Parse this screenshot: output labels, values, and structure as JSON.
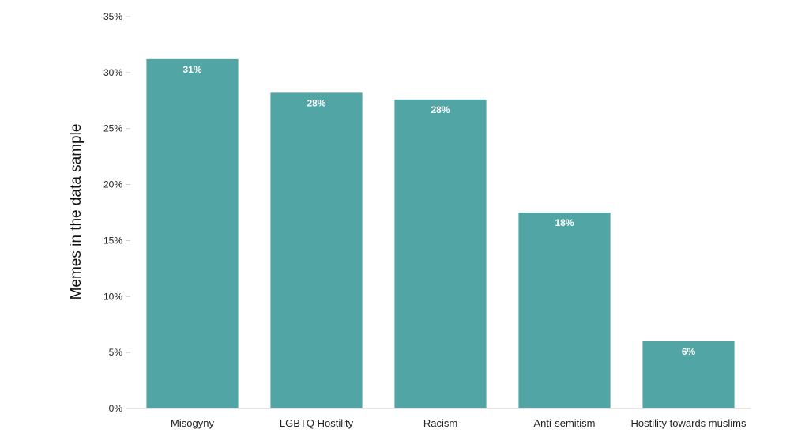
{
  "chart_data": {
    "type": "bar",
    "categories": [
      "Misogyny",
      "LGBTQ Hostility",
      "Racism",
      "Anti-semitism",
      "Hostility towards muslims"
    ],
    "values": [
      31.2,
      28.2,
      27.6,
      17.5,
      6.0
    ],
    "data_labels": [
      "31%",
      "28%",
      "28%",
      "18%",
      "6%"
    ],
    "title": "",
    "xlabel": "",
    "ylabel": "Memes in the data sample",
    "ylim": [
      0,
      35
    ],
    "y_ticks": [
      0,
      5,
      10,
      15,
      20,
      25,
      30,
      35
    ],
    "y_tick_labels": [
      "0%",
      "5%",
      "10%",
      "15%",
      "20%",
      "25%",
      "30%",
      "35%"
    ],
    "grid": false,
    "legend": "none",
    "bar_color": "#52a5a5",
    "axis_color": "#cccccc"
  }
}
